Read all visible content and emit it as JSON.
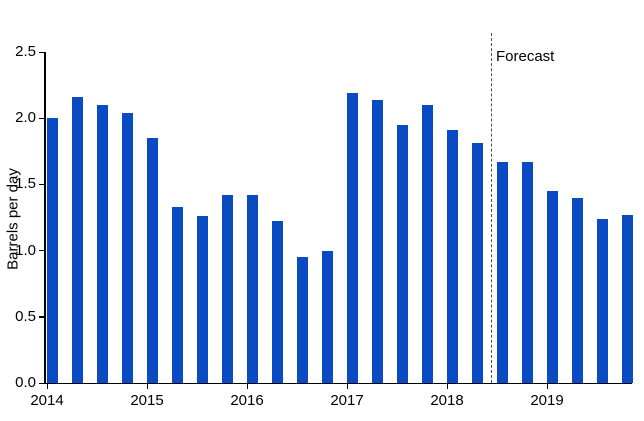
{
  "chart_data": {
    "type": "bar",
    "title": "",
    "xlabel": "",
    "ylabel": "Barrels per day",
    "ylim": [
      0,
      2.5
    ],
    "grid": false,
    "legend_position": "none",
    "y_tick_labels": [
      "0.0",
      "0.5",
      "1.0",
      "1.5",
      "2.0",
      "2.5"
    ],
    "x_tick_labels": [
      "2014",
      "2015",
      "2016",
      "2017",
      "2018",
      "2019"
    ],
    "categories": [
      "2014-Q1",
      "2014-Q2",
      "2014-Q3",
      "2014-Q4",
      "2015-Q1",
      "2015-Q2",
      "2015-Q3",
      "2015-Q4",
      "2016-Q1",
      "2016-Q2",
      "2016-Q3",
      "2016-Q4",
      "2017-Q1",
      "2017-Q2",
      "2017-Q3",
      "2017-Q4",
      "2018-Q1",
      "2018-Q2",
      "2018-Q3",
      "2018-Q4",
      "2019-Q1",
      "2019-Q2",
      "2019-Q3",
      "2019-Q4"
    ],
    "series": [
      {
        "name": "Barrels per day",
        "values": [
          2.0,
          2.16,
          2.1,
          2.04,
          1.85,
          1.33,
          1.26,
          1.42,
          1.42,
          1.22,
          0.95,
          1.0,
          2.19,
          2.14,
          1.95,
          2.1,
          1.91,
          1.81,
          1.67,
          1.67,
          1.45,
          1.4,
          1.24,
          1.27
        ]
      }
    ],
    "annotations": [
      {
        "label": "Forecast",
        "type": "vertical-dashed-line",
        "starts_at_category": "2018-Q3"
      }
    ],
    "forecast_start_index": 18,
    "colors": {
      "bar": "#0a4bc4",
      "axis": "#000000",
      "text": "#000000",
      "forecast_line": "#4d4d4d"
    }
  }
}
